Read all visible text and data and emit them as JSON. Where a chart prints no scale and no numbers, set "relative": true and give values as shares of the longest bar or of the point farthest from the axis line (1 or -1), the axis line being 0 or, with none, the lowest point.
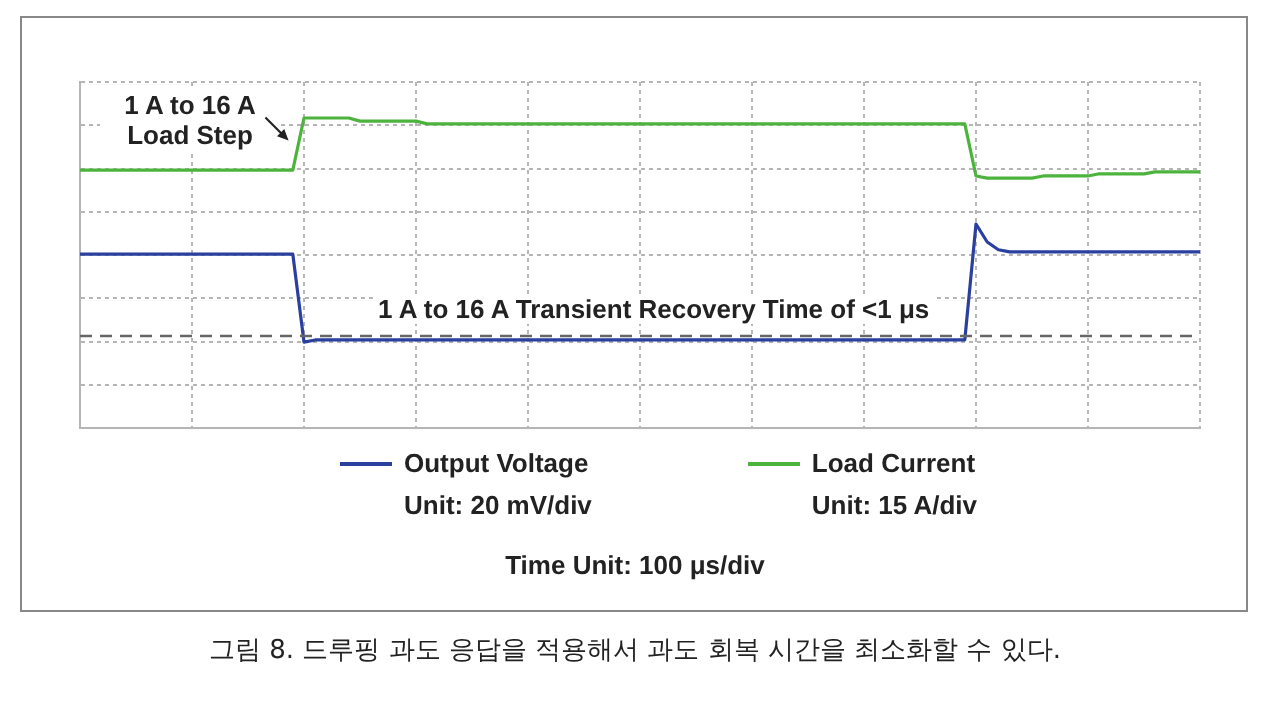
{
  "chart_data": {
    "type": "line",
    "relative": true,
    "tick_labels": false,
    "grid": true,
    "legend": "bottom",
    "marker": "none",
    "categories": [
      null,
      null,
      null,
      null,
      null,
      null,
      null,
      null,
      null,
      null,
      null,
      null,
      null,
      null,
      null,
      null,
      null,
      null,
      null,
      null,
      null,
      null,
      null,
      null,
      null,
      null,
      null,
      null,
      null,
      null,
      null,
      null,
      null,
      null,
      null,
      null,
      null,
      null,
      null,
      null,
      null,
      null,
      null,
      null,
      null,
      null,
      null,
      null,
      null,
      null,
      null,
      null,
      null,
      null,
      null,
      null,
      null,
      null,
      null,
      null,
      null,
      null,
      null,
      null,
      null,
      null,
      null,
      null,
      null,
      null,
      null,
      null,
      null,
      null,
      null,
      null,
      null,
      null,
      null,
      null,
      null,
      null,
      null,
      null,
      null,
      null,
      null,
      null,
      null,
      null,
      null,
      null,
      null,
      null,
      null,
      null,
      null,
      null,
      null,
      null,
      null
    ],
    "series": [
      {
        "name": "Output Voltage",
        "color": "#2a3f9e",
        "values": [
          0.561,
          0.561,
          0.561,
          0.561,
          0.561,
          0.561,
          0.561,
          0.561,
          0.561,
          0.561,
          0.561,
          0.561,
          0.561,
          0.561,
          0.561,
          0.561,
          0.561,
          0.561,
          0.561,
          0.561,
          0.277,
          0.284,
          0.284,
          0.284,
          0.284,
          0.284,
          0.284,
          0.284,
          0.284,
          0.284,
          0.284,
          0.284,
          0.284,
          0.284,
          0.284,
          0.284,
          0.284,
          0.284,
          0.284,
          0.284,
          0.284,
          0.284,
          0.284,
          0.284,
          0.284,
          0.284,
          0.284,
          0.284,
          0.284,
          0.284,
          0.284,
          0.284,
          0.284,
          0.284,
          0.284,
          0.284,
          0.284,
          0.284,
          0.284,
          0.284,
          0.284,
          0.284,
          0.284,
          0.284,
          0.284,
          0.284,
          0.284,
          0.284,
          0.284,
          0.284,
          0.284,
          0.284,
          0.284,
          0.284,
          0.284,
          0.284,
          0.284,
          0.284,
          0.284,
          0.284,
          0.658,
          0.6,
          0.575,
          0.568,
          0.568,
          0.568,
          0.568,
          0.568,
          0.568,
          0.568,
          0.568,
          0.568,
          0.568,
          0.568,
          0.568,
          0.568,
          0.568,
          0.568,
          0.568,
          0.568,
          0.568
        ]
      },
      {
        "name": "Load Current",
        "color": "#4cb43c",
        "values": [
          0.832,
          0.832,
          0.832,
          0.832,
          0.832,
          0.832,
          0.832,
          0.832,
          0.832,
          0.832,
          0.832,
          0.832,
          0.832,
          0.832,
          0.832,
          0.832,
          0.832,
          0.832,
          0.832,
          0.832,
          1,
          1,
          1,
          1,
          1,
          0.99,
          0.99,
          0.99,
          0.99,
          0.99,
          0.99,
          0.981,
          0.981,
          0.981,
          0.981,
          0.981,
          0.981,
          0.981,
          0.981,
          0.981,
          0.981,
          0.981,
          0.981,
          0.981,
          0.981,
          0.981,
          0.981,
          0.981,
          0.981,
          0.981,
          0.981,
          0.981,
          0.981,
          0.981,
          0.981,
          0.981,
          0.981,
          0.981,
          0.981,
          0.981,
          0.981,
          0.981,
          0.981,
          0.981,
          0.981,
          0.981,
          0.981,
          0.981,
          0.981,
          0.981,
          0.981,
          0.981,
          0.981,
          0.981,
          0.981,
          0.981,
          0.981,
          0.981,
          0.981,
          0.981,
          0.813,
          0.806,
          0.806,
          0.806,
          0.806,
          0.806,
          0.813,
          0.813,
          0.813,
          0.813,
          0.813,
          0.82,
          0.82,
          0.82,
          0.82,
          0.82,
          0.826,
          0.826,
          0.826,
          0.826,
          0.826
        ]
      }
    ],
    "ref_lines": [
      {
        "axis": "y",
        "value": 0.297,
        "color": "#666666",
        "line_style": "dashed"
      }
    ],
    "annotations": [
      "1 A to 16 A Load Step",
      "1 A to 16 A Transient Recovery Time of <1 μs",
      "Unit: 20 mV/div",
      "Unit: 15 A/div",
      "Time Unit: 100 μs/div",
      "그림 8. 드루핑 과도 응답을 적용해서 과도 회복 시간을 최소화할 수 있다."
    ]
  }
}
